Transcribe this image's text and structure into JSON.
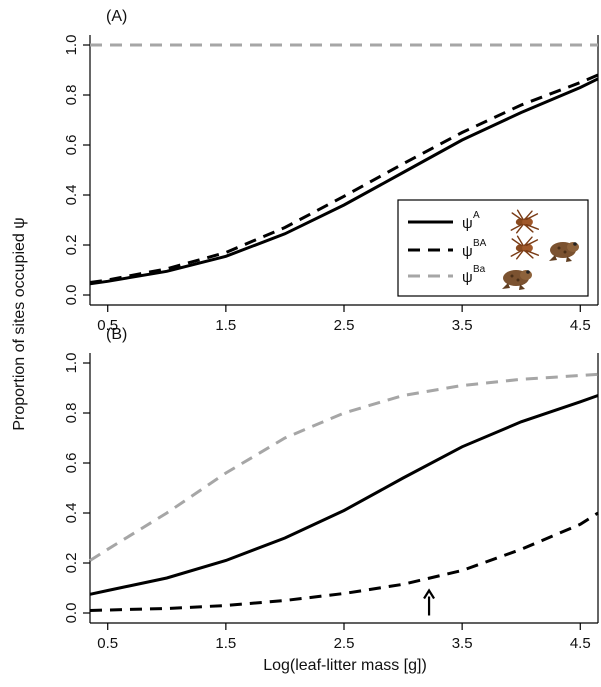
{
  "figure": {
    "ylabel": "Proportion of sites occupied ψ",
    "xlabel": "Log(leaf-litter mass [g])"
  },
  "chart_data": [
    {
      "type": "line",
      "panel_label": "(A)",
      "xlim": [
        0.35,
        4.65
      ],
      "ylim": [
        -0.04,
        1.04
      ],
      "xticks": [
        "0.5",
        "1.5",
        "2.5",
        "3.5",
        "4.5"
      ],
      "yticks": [
        "0.0",
        "0.2",
        "0.4",
        "0.6",
        "0.8",
        "1.0"
      ],
      "legend": {
        "placement": "bottom-right",
        "entries": [
          {
            "symbol": "ψ",
            "sup": "A",
            "style": "solid",
            "color": "#000000",
            "icons": [
              "spider-icon"
            ]
          },
          {
            "symbol": "ψ",
            "sup": "BA",
            "style": "dashed",
            "color": "#000000",
            "icons": [
              "spider-icon",
              "frog-icon"
            ]
          },
          {
            "symbol": "ψ",
            "sup": "Ba",
            "style": "dashed",
            "color": "#a6a6a6",
            "icons": [
              "frog-icon"
            ]
          }
        ]
      },
      "series": [
        {
          "key": "psiA",
          "style": "solid",
          "color": "#000000",
          "x": [
            0.35,
            0.5,
            1.0,
            1.5,
            2.0,
            2.5,
            3.0,
            3.5,
            4.0,
            4.5,
            4.65
          ],
          "y": [
            0.045,
            0.055,
            0.095,
            0.155,
            0.245,
            0.36,
            0.49,
            0.62,
            0.73,
            0.83,
            0.865
          ]
        },
        {
          "key": "psiBA",
          "style": "dashed",
          "color": "#000000",
          "x": [
            0.35,
            0.5,
            1.0,
            1.5,
            2.0,
            2.5,
            3.0,
            3.5,
            4.0,
            4.5,
            4.65
          ],
          "y": [
            0.05,
            0.06,
            0.105,
            0.17,
            0.27,
            0.395,
            0.525,
            0.65,
            0.76,
            0.85,
            0.88
          ]
        },
        {
          "key": "psiBa",
          "style": "dashed",
          "color": "#a6a6a6",
          "x": [
            0.35,
            4.65
          ],
          "y": [
            1.0,
            1.0
          ]
        }
      ]
    },
    {
      "type": "line",
      "panel_label": "(B)",
      "xlim": [
        0.35,
        4.65
      ],
      "ylim": [
        -0.04,
        1.04
      ],
      "xticks": [
        "0.5",
        "1.5",
        "2.5",
        "3.5",
        "4.5"
      ],
      "yticks": [
        "0.0",
        "0.2",
        "0.4",
        "0.6",
        "0.8",
        "1.0"
      ],
      "annotation": {
        "type": "arrow",
        "x": 3.22,
        "y_from": -0.01,
        "y_to": 0.09
      },
      "series": [
        {
          "key": "psiA",
          "style": "solid",
          "color": "#000000",
          "x": [
            0.35,
            0.5,
            1.0,
            1.5,
            2.0,
            2.5,
            3.0,
            3.5,
            4.0,
            4.5,
            4.65
          ],
          "y": [
            0.075,
            0.09,
            0.14,
            0.21,
            0.3,
            0.41,
            0.54,
            0.665,
            0.765,
            0.845,
            0.87
          ]
        },
        {
          "key": "psiBA",
          "style": "dashed",
          "color": "#000000",
          "x": [
            0.35,
            0.5,
            1.0,
            1.5,
            2.0,
            2.5,
            3.0,
            3.5,
            4.0,
            4.5,
            4.65
          ],
          "y": [
            0.01,
            0.012,
            0.018,
            0.03,
            0.05,
            0.078,
            0.115,
            0.17,
            0.255,
            0.355,
            0.4
          ]
        },
        {
          "key": "psiBa",
          "style": "dashed",
          "color": "#a6a6a6",
          "x": [
            0.35,
            0.5,
            1.0,
            1.5,
            2.0,
            2.5,
            3.0,
            3.5,
            4.0,
            4.5,
            4.65
          ],
          "y": [
            0.21,
            0.255,
            0.4,
            0.56,
            0.7,
            0.8,
            0.87,
            0.91,
            0.935,
            0.95,
            0.955
          ]
        }
      ]
    }
  ]
}
